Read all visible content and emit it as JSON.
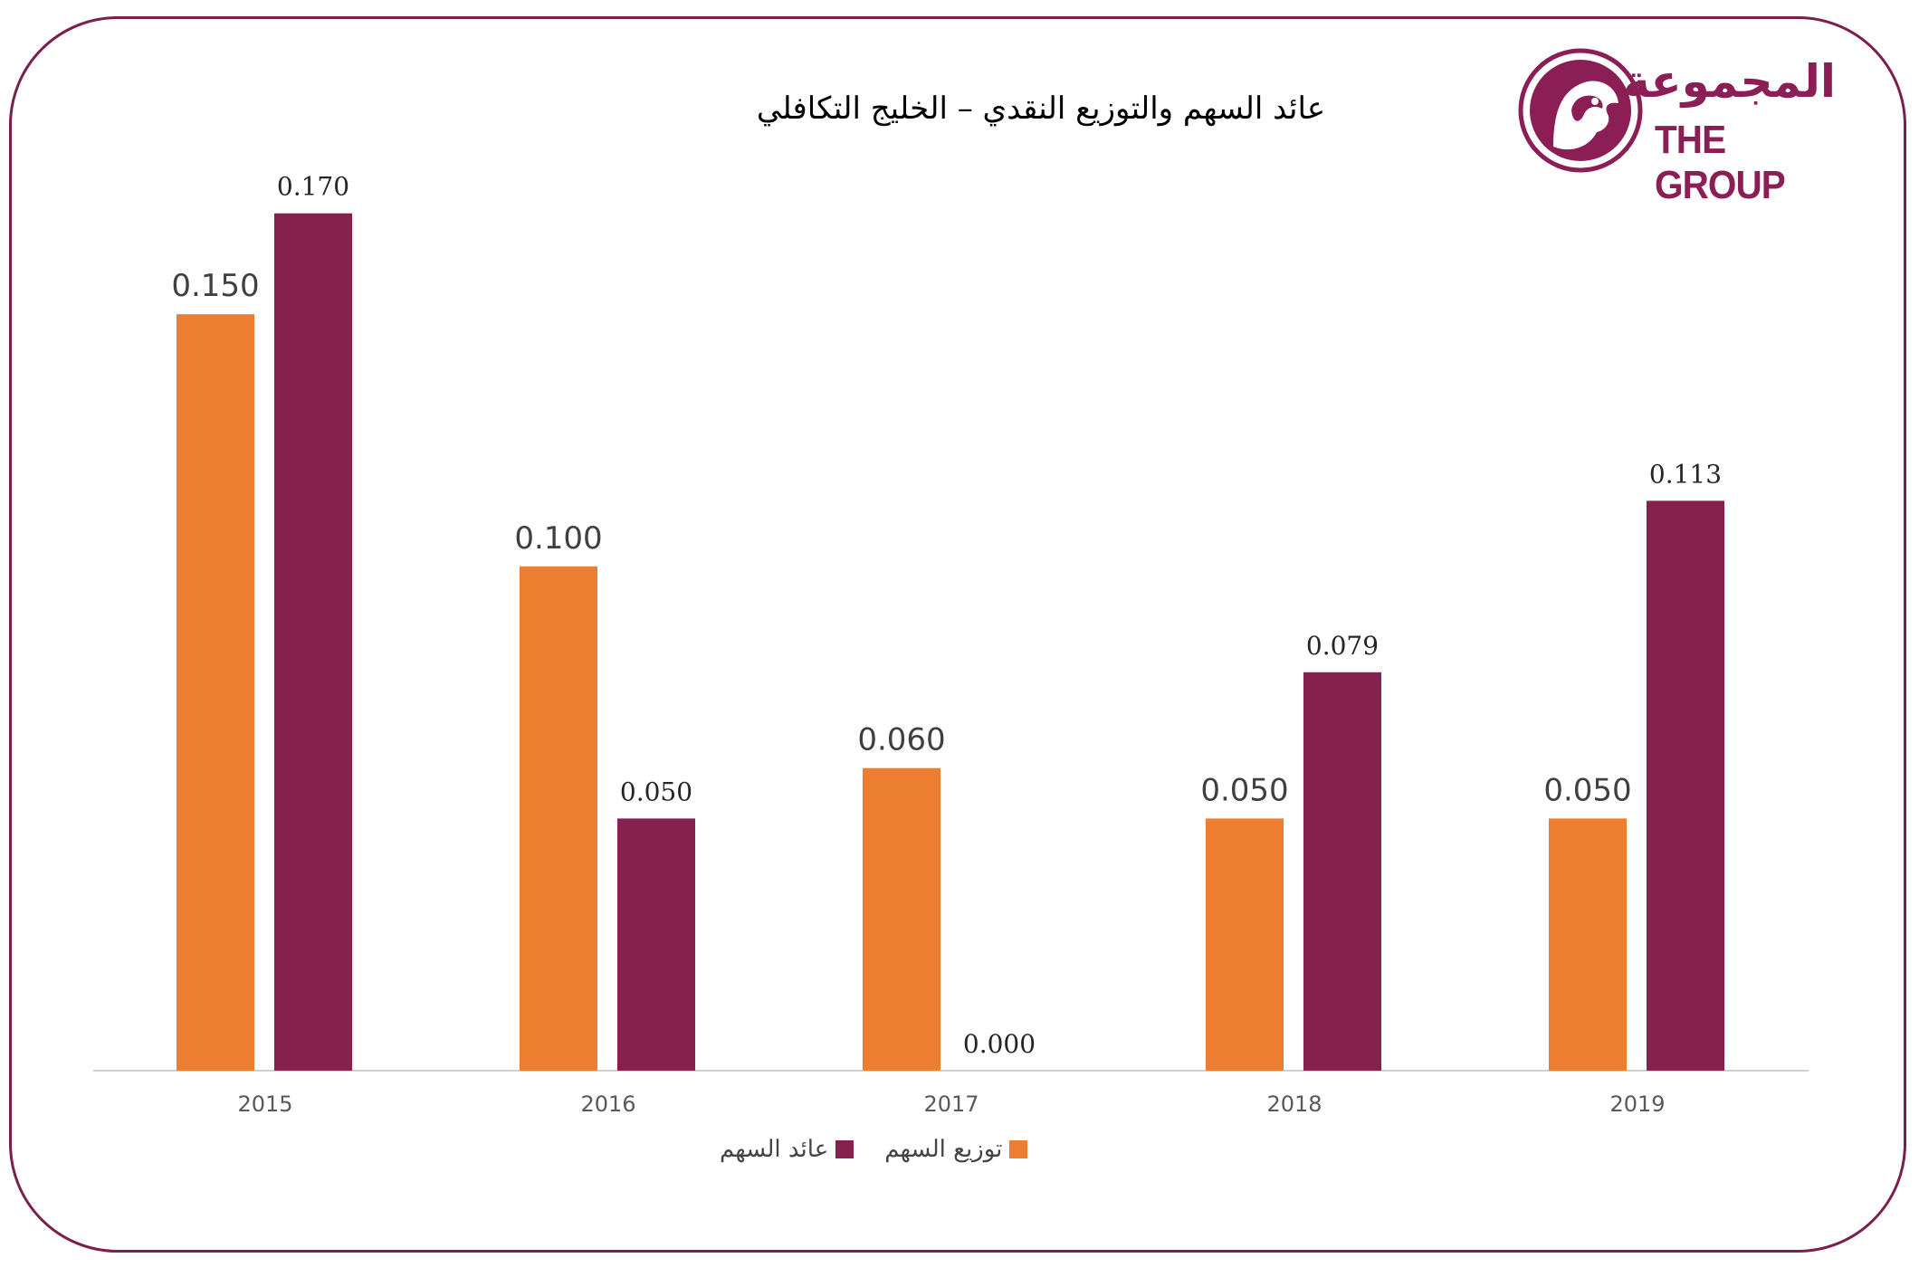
{
  "colors": {
    "frame": "#7a1f4e",
    "orange": "#ed7d31",
    "maroon": "#86204f"
  },
  "logo": {
    "arabic": "المجموعة",
    "english": "THE GROUP",
    "icon": "falcon-head-icon"
  },
  "chart_data": {
    "type": "bar",
    "title": "عائد السهم والتوزيع النقدي – الخليج التكافلي",
    "categories": [
      "2015",
      "2016",
      "2017",
      "2018",
      "2019"
    ],
    "series": [
      {
        "name": "توزيع السهم",
        "color": "#ed7d31",
        "values": [
          0.15,
          0.1,
          0.06,
          0.05,
          0.05
        ]
      },
      {
        "name": "عائد السهم",
        "color": "#86204f",
        "values": [
          0.17,
          0.05,
          0.0,
          0.079,
          0.113
        ]
      }
    ],
    "ylim": [
      0,
      0.18
    ],
    "grid": false,
    "legend_position": "bottom-left"
  }
}
